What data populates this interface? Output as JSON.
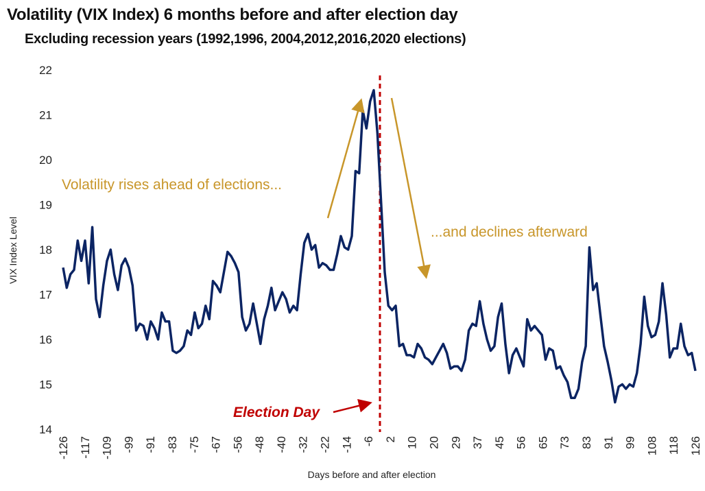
{
  "chart_data": {
    "type": "line",
    "title": "Volatility (VIX Index) 6 months before and after election day",
    "subtitle": "Excluding recession years (1992,1996, 2004,2012,2016,2020 elections)",
    "xlabel": "Days before and after election",
    "ylabel": "VIX Index Level",
    "xlim": [
      -126,
      126
    ],
    "ylim": [
      14,
      22
    ],
    "y_ticks": [
      14,
      15,
      16,
      17,
      18,
      19,
      20,
      21,
      22
    ],
    "x_tick_labels": [
      "-126",
      "-117",
      "-109",
      "-99",
      "-91",
      "-83",
      "-75",
      "-67",
      "-56",
      "-48",
      "-40",
      "-32",
      "-22",
      "-14",
      "-6",
      "2",
      "10",
      "20",
      "29",
      "37",
      "45",
      "56",
      "65",
      "73",
      "83",
      "91",
      "99",
      "108",
      "118",
      "126"
    ],
    "grid": false,
    "series": [
      {
        "name": "VIX Index",
        "color": "#0b2463",
        "x_range": [
          -126,
          126
        ],
        "values": [
          17.6,
          17.15,
          17.45,
          17.55,
          18.2,
          17.75,
          18.2,
          17.25,
          18.5,
          16.9,
          16.5,
          17.2,
          17.75,
          18.0,
          17.45,
          17.1,
          17.65,
          17.8,
          17.6,
          17.2,
          16.2,
          16.35,
          16.3,
          16.0,
          16.4,
          16.25,
          16.0,
          16.6,
          16.4,
          16.4,
          15.75,
          15.7,
          15.75,
          15.85,
          16.2,
          16.1,
          16.6,
          16.25,
          16.35,
          16.75,
          16.45,
          17.3,
          17.2,
          17.05,
          17.5,
          17.95,
          17.85,
          17.7,
          17.5,
          16.5,
          16.2,
          16.35,
          16.8,
          16.35,
          15.9,
          16.45,
          16.75,
          17.15,
          16.65,
          16.85,
          17.05,
          16.9,
          16.6,
          16.75,
          16.65,
          17.45,
          18.15,
          18.35,
          18.0,
          18.1,
          17.6,
          17.7,
          17.65,
          17.55,
          17.55,
          17.9,
          18.3,
          18.05,
          18.0,
          18.3,
          19.75,
          19.7,
          21.1,
          20.7,
          21.3,
          21.55,
          20.6,
          19.05,
          17.5,
          16.75,
          16.65,
          16.75,
          15.85,
          15.9,
          15.65,
          15.65,
          15.6,
          15.9,
          15.8,
          15.6,
          15.55,
          15.45,
          15.6,
          15.75,
          15.9,
          15.7,
          15.35,
          15.4,
          15.4,
          15.3,
          15.55,
          16.2,
          16.35,
          16.3,
          16.85,
          16.35,
          16.0,
          15.75,
          15.85,
          16.5,
          16.8,
          15.9,
          15.25,
          15.65,
          15.8,
          15.6,
          15.4,
          16.45,
          16.2,
          16.3,
          16.2,
          16.1,
          15.55,
          15.8,
          15.75,
          15.35,
          15.4,
          15.2,
          15.05,
          14.7,
          14.7,
          14.9,
          15.5,
          15.85,
          18.05,
          17.1,
          17.25,
          16.55,
          15.85,
          15.5,
          15.1,
          14.6,
          14.95,
          15.0,
          14.9,
          15.0,
          14.95,
          15.25,
          15.9,
          16.95,
          16.3,
          16.05,
          16.1,
          16.4,
          17.25,
          16.55,
          15.6,
          15.8,
          15.8,
          16.35,
          15.85,
          15.65,
          15.7,
          15.3
        ]
      }
    ],
    "annotations": {
      "rise": "Volatility rises ahead of elections...",
      "decline": "...and declines afterward",
      "election_day": "Election Day",
      "election_day_x": 0
    },
    "colors": {
      "gold": "#c8962a",
      "red": "#c00000",
      "line": "#0b2463"
    }
  }
}
